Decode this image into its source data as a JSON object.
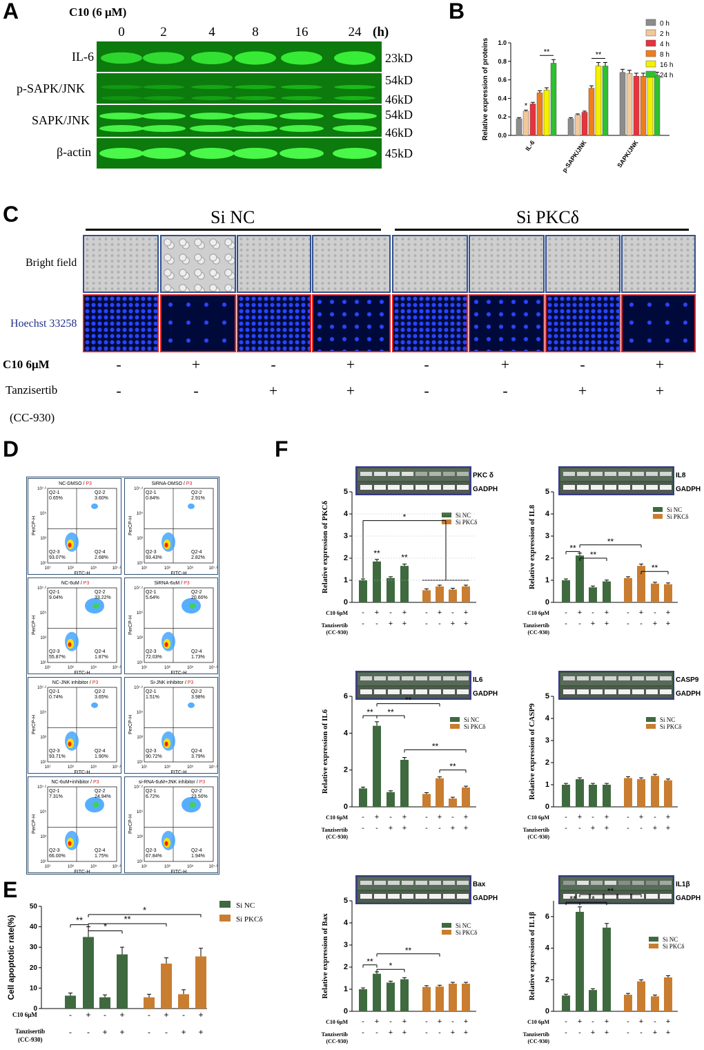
{
  "panels": {
    "A": "A",
    "B": "B",
    "C": "C",
    "D": "D",
    "E": "E",
    "F": "F"
  },
  "panel_a": {
    "treatment": "C10 (6 μM)",
    "times": [
      "0",
      "2",
      "4",
      "8",
      "16",
      "24"
    ],
    "time_unit": "(h)",
    "rows": [
      {
        "label": "IL-6",
        "sizes": [
          "23kD"
        ]
      },
      {
        "label": "p-SAPK/JNK",
        "sizes": [
          "54kD",
          "46kD"
        ]
      },
      {
        "label": "SAPK/JNK",
        "sizes": [
          "54kD",
          "46kD"
        ]
      },
      {
        "label": "β-actin",
        "sizes": [
          "45kD"
        ]
      }
    ]
  },
  "panel_c": {
    "group1": "Si NC",
    "group2": "Si PKCδ",
    "row_bright": "Bright field",
    "row_hoechst": "Hoechst 33258",
    "c10_label": "C10 6μM",
    "tanz_label": "Tanzisertib",
    "tanz_sub": "(CC-930)",
    "c10_signs": [
      "-",
      "+",
      "-",
      "+",
      "-",
      "+",
      "-",
      "+"
    ],
    "tanz_signs": [
      "-",
      "-",
      "+",
      "+",
      "-",
      "-",
      "+",
      "+"
    ]
  },
  "panel_d": {
    "plots": [
      {
        "title": "NC-DMSO",
        "gate": "P3",
        "q1": "Q2-1\n0.65%",
        "q2": "Q2-2\n3.60%",
        "q3": "Q2-3\n93.07%",
        "q4": "Q2-4\n2.68%"
      },
      {
        "title": "SiRNA-DMSO",
        "gate": "P3",
        "q1": "Q2-1\n0.84%",
        "q2": "Q2-2\n2.91%",
        "q3": "Q2-3\n93.43%",
        "q4": "Q2-4\n2.82%"
      },
      {
        "title": "NC-6uM",
        "gate": "P3",
        "q1": "Q2-1\n9.04%",
        "q2": "Q2-2\n33.22%",
        "q3": "Q2-3\n55.87%",
        "q4": "Q2-4\n1.87%"
      },
      {
        "title": "SiRNA-6uM",
        "gate": "P3",
        "q1": "Q2-1\n5.64%",
        "q2": "Q2-2\n20.60%",
        "q3": "Q2-3\n72.03%",
        "q4": "Q2-4\n1.73%"
      },
      {
        "title": "NC-JNK inhibitor",
        "gate": "P3",
        "q1": "Q2-1\n0.74%",
        "q2": "Q2-2\n3.65%",
        "q3": "Q2-3\n93.71%",
        "q4": "Q2-4\n1.90%"
      },
      {
        "title": "Si-JNK inhibitor",
        "gate": "P3",
        "q1": "Q2-1\n1.51%",
        "q2": "Q2-2\n3.98%",
        "q3": "Q2-3\n90.72%",
        "q4": "Q2-4\n3.79%"
      },
      {
        "title": "NC-6uM+inhibitor",
        "gate": "P3",
        "q1": "Q2-1\n7.31%",
        "q2": "Q2-2\n24.94%",
        "q3": "Q2-3\n66.00%",
        "q4": "Q2-4\n1.75%"
      },
      {
        "title": "si-RNA-6uM+JNK inhibitor",
        "gate": "P3",
        "q1": "Q2-1\n6.72%",
        "q2": "Q2-2\n23.50%",
        "q3": "Q2-3\n67.84%",
        "q4": "Q2-4\n1.94%"
      }
    ],
    "xaxis": "FITC-H",
    "yaxis": "PerCP-H",
    "xticks": [
      "10¹",
      "10³",
      "10⁵",
      "10⁷·²"
    ],
    "yticks": [
      "10¹",
      "10³",
      "10⁵",
      "10⁷·²"
    ]
  },
  "chart_data": [
    {
      "id": "B",
      "type": "bar",
      "ylabel": "Relative expression of proteins",
      "categories": [
        "IL-6",
        "p-SAPK/JNK",
        "SAPK/JNK"
      ],
      "ylim": [
        0,
        1.0
      ],
      "yticks": [
        "0.0",
        "0.2",
        "0.4",
        "0.6",
        "0.8",
        "1.0"
      ],
      "series": [
        {
          "name": "0 h",
          "color": "#8c8c8c",
          "values": [
            0.18,
            0.18,
            0.68
          ]
        },
        {
          "name": "2 h",
          "color": "#f2c89a",
          "values": [
            0.26,
            0.22,
            0.67
          ]
        },
        {
          "name": "4 h",
          "color": "#e8323c",
          "values": [
            0.34,
            0.25,
            0.64
          ]
        },
        {
          "name": "8 h",
          "color": "#ef7d1c",
          "values": [
            0.46,
            0.51,
            0.64
          ]
        },
        {
          "name": "16 h",
          "color": "#f5f000",
          "values": [
            0.49,
            0.75,
            0.64
          ]
        },
        {
          "name": "24 h",
          "color": "#2fbf2f",
          "values": [
            0.78,
            0.75,
            0.65
          ]
        }
      ],
      "annotations": [
        "*",
        "**",
        "**"
      ]
    },
    {
      "id": "E",
      "type": "bar",
      "ylabel": "Cell apoptotic rate(%)",
      "ylim": [
        0,
        50
      ],
      "yticks": [
        "0",
        "10",
        "20",
        "30",
        "40",
        "50"
      ],
      "series": [
        {
          "name": "Si NC",
          "color": "#3f6a3f",
          "values": [
            6.3,
            35,
            5.5,
            26.5
          ]
        },
        {
          "name": "Si PKCδ",
          "color": "#c97d30",
          "values": [
            5.5,
            22,
            7,
            25.5
          ]
        }
      ],
      "annotations": [
        "**",
        "*",
        "**",
        "*"
      ]
    },
    {
      "id": "F-PKCd",
      "type": "bar",
      "ylabel": "Relative expression of PKCδ",
      "gene": "PKC δ",
      "ylim": [
        0,
        5
      ],
      "yticks": [
        "0",
        "1",
        "2",
        "3",
        "4",
        "5"
      ],
      "series": [
        {
          "name": "Si NC",
          "values": [
            1.0,
            1.85,
            1.1,
            1.65
          ]
        },
        {
          "name": "Si PKCδ",
          "values": [
            0.55,
            0.72,
            0.58,
            0.72
          ]
        }
      ],
      "annotations": [
        "**",
        "**",
        "*"
      ]
    },
    {
      "id": "F-IL8",
      "type": "bar",
      "ylabel": "Relative expression of IL8",
      "gene": "IL8",
      "ylim": [
        0,
        5
      ],
      "yticks": [
        "0",
        "1",
        "2",
        "3",
        "4",
        "5"
      ],
      "series": [
        {
          "name": "Si NC",
          "values": [
            1.0,
            2.12,
            0.68,
            0.95
          ]
        },
        {
          "name": "Si PKCδ",
          "values": [
            1.1,
            1.65,
            0.85,
            0.82
          ]
        }
      ],
      "annotations": [
        "**",
        "**",
        "**",
        "**"
      ]
    },
    {
      "id": "F-IL6",
      "type": "bar",
      "ylabel": "Relative expression of IL6",
      "gene": "IL6",
      "ylim": [
        0,
        6
      ],
      "yticks": [
        "0",
        "2",
        "4",
        "6"
      ],
      "series": [
        {
          "name": "Si NC",
          "values": [
            1.0,
            4.4,
            0.8,
            2.55
          ]
        },
        {
          "name": "Si PKCδ",
          "values": [
            0.7,
            1.55,
            0.45,
            1.05
          ]
        }
      ],
      "annotations": [
        "**",
        "**",
        "**",
        "**",
        "**"
      ]
    },
    {
      "id": "F-CASP9",
      "type": "bar",
      "ylabel": "Relative expression of CASP9",
      "gene": "CASP9",
      "ylim": [
        0,
        5
      ],
      "yticks": [
        "0",
        "1",
        "2",
        "3",
        "4",
        "5"
      ],
      "series": [
        {
          "name": "Si NC",
          "values": [
            1.0,
            1.25,
            1.0,
            1.0
          ]
        },
        {
          "name": "Si PKCδ",
          "values": [
            1.3,
            1.25,
            1.4,
            1.2
          ]
        }
      ],
      "annotations": []
    },
    {
      "id": "F-Bax",
      "type": "bar",
      "ylabel": "Relative expression of Bax",
      "gene": "Bax",
      "ylim": [
        0,
        5
      ],
      "yticks": [
        "0",
        "1",
        "2",
        "3",
        "4",
        "5"
      ],
      "series": [
        {
          "name": "Si NC",
          "values": [
            1.0,
            1.7,
            1.3,
            1.45
          ]
        },
        {
          "name": "Si PKCδ",
          "values": [
            1.1,
            1.12,
            1.25,
            1.25
          ]
        }
      ],
      "annotations": [
        "**",
        "*",
        "**"
      ]
    },
    {
      "id": "F-IL1b",
      "type": "bar",
      "ylabel": "Relative expression of IL1β",
      "gene": "IL1β",
      "ylim": [
        0,
        7
      ],
      "yticks": [
        "0",
        "2",
        "4",
        "6"
      ],
      "series": [
        {
          "name": "Si NC",
          "values": [
            1.0,
            6.3,
            1.35,
            5.3
          ]
        },
        {
          "name": "Si PKCδ",
          "values": [
            1.05,
            1.9,
            0.95,
            2.15
          ]
        }
      ],
      "annotations": [
        "**",
        "*",
        "**"
      ]
    }
  ],
  "panel_f": {
    "ref_gene": "GADPH",
    "legend_nc": "Si NC",
    "legend_pk": "Si PKCδ",
    "c10_label": "C10 6μM",
    "tanz_label": "Tanzisertib",
    "tanz_sub": "(CC-930)",
    "c10_signs": [
      "-",
      "+",
      "-",
      "+",
      "-",
      "+",
      "-",
      "+"
    ],
    "tanz_signs": [
      "-",
      "-",
      "+",
      "+",
      "-",
      "-",
      "+",
      "+"
    ]
  },
  "colors": {
    "nc": "#3f6a3f",
    "pk": "#c97d30",
    "blot_green": "#0c7a0c"
  }
}
